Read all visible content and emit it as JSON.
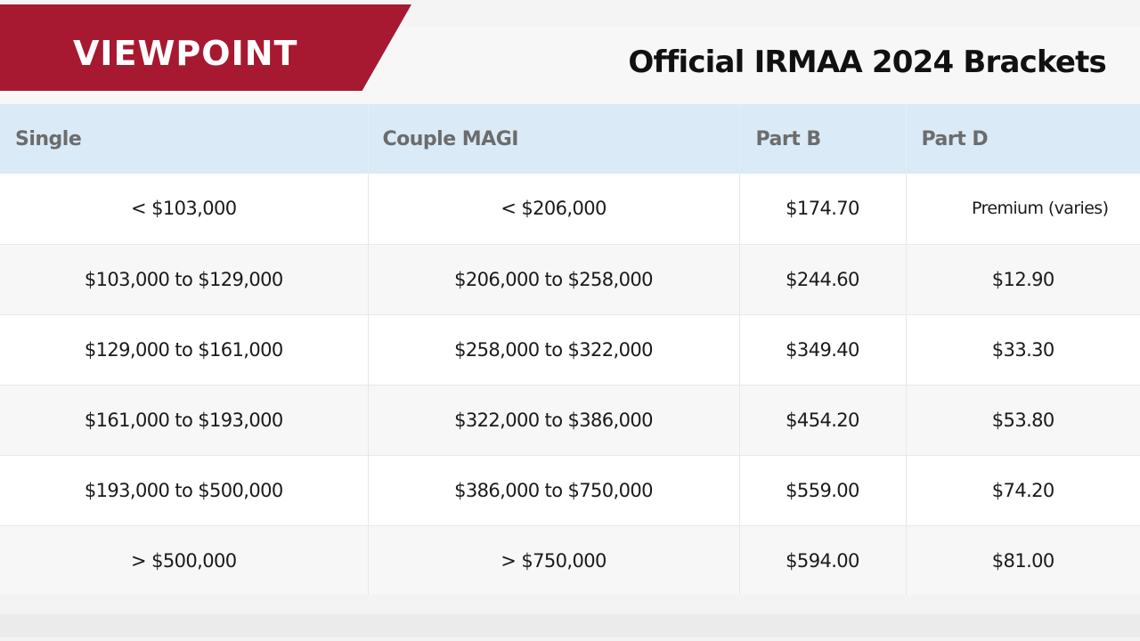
{
  "banner": {
    "label": "VIEWPOINT",
    "color": "#a71930"
  },
  "page_title": "Official IRMAA 2024 Brackets",
  "table": {
    "headers": [
      "Single",
      "Couple MAGI",
      "Part B",
      "Part D"
    ],
    "rows": [
      {
        "single": "< $103,000",
        "couple": "< $206,000",
        "part_b": "$174.70",
        "part_d": "Premium (varies)"
      },
      {
        "single": "$103,000 to $129,000",
        "couple": "$206,000 to $258,000",
        "part_b": "$244.60",
        "part_d": "$12.90"
      },
      {
        "single": "$129,000 to $161,000",
        "couple": "$258,000 to $322,000",
        "part_b": "$349.40",
        "part_d": "$33.30"
      },
      {
        "single": "$161,000 to $193,000",
        "couple": "$322,000 to $386,000",
        "part_b": "$454.20",
        "part_d": "$53.80"
      },
      {
        "single": "$193,000 to $500,000",
        "couple": "$386,000 to $750,000",
        "part_b": "$559.00",
        "part_d": "$74.20"
      },
      {
        "single": "> $500,000",
        "couple": "> $750,000",
        "part_b": "$594.00",
        "part_d": "$81.00"
      }
    ]
  }
}
